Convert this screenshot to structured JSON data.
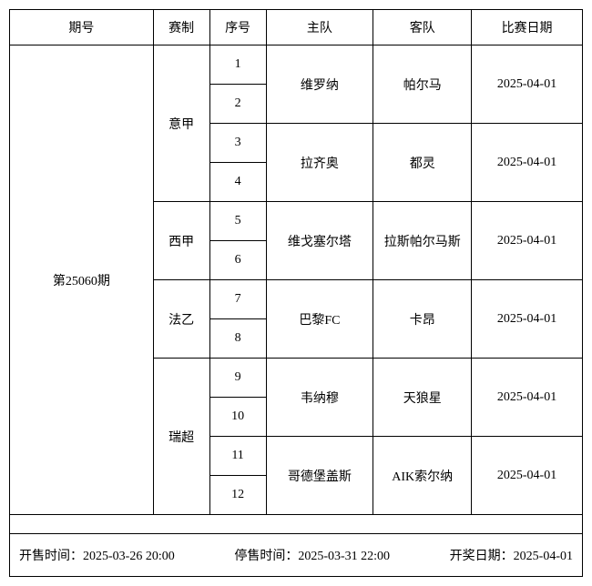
{
  "headers": {
    "issue": "期号",
    "league": "赛制",
    "seq": "序号",
    "home": "主队",
    "away": "客队",
    "date": "比赛日期"
  },
  "issue": "第25060期",
  "leagues": [
    {
      "name": "意甲",
      "matches": [
        {
          "seqs": [
            "1",
            "2"
          ],
          "home": "维罗纳",
          "away": "帕尔马",
          "date": "2025-04-01"
        },
        {
          "seqs": [
            "3",
            "4"
          ],
          "home": "拉齐奥",
          "away": "都灵",
          "date": "2025-04-01"
        }
      ]
    },
    {
      "name": "西甲",
      "matches": [
        {
          "seqs": [
            "5",
            "6"
          ],
          "home": "维戈塞尔塔",
          "away": "拉斯帕尔马斯",
          "date": "2025-04-01"
        }
      ]
    },
    {
      "name": "法乙",
      "matches": [
        {
          "seqs": [
            "7",
            "8"
          ],
          "home": "巴黎FC",
          "away": "卡昂",
          "date": "2025-04-01"
        }
      ]
    },
    {
      "name": "瑞超",
      "matches": [
        {
          "seqs": [
            "9",
            "10"
          ],
          "home": "韦纳穆",
          "away": "天狼星",
          "date": "2025-04-01"
        },
        {
          "seqs": [
            "11",
            "12"
          ],
          "home": "哥德堡盖斯",
          "away": "AIK索尔纳",
          "date": "2025-04-01"
        }
      ]
    }
  ],
  "footer": {
    "sale_start": "开售时间：2025-03-26 20:00",
    "sale_end": "停售时间：2025-03-31 22:00",
    "draw_date": "开奖日期：2025-04-01"
  },
  "col_widths": {
    "issue": 158,
    "league": 62,
    "seq": 62,
    "home": 118,
    "away": 108,
    "date": 122
  }
}
